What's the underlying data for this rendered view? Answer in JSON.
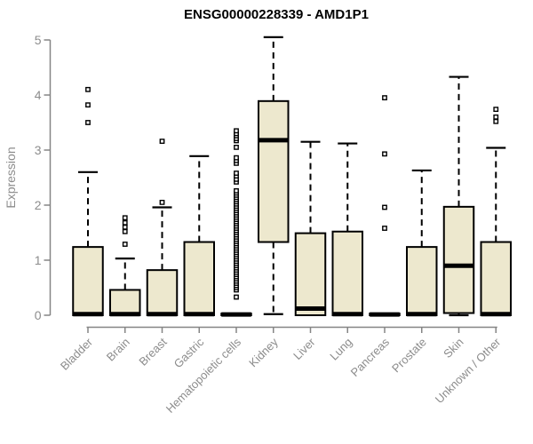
{
  "colors": {
    "box_fill": "#EDE8CE",
    "box_border": "#000000",
    "median": "#000000",
    "whisker": "#000000",
    "outlier_stroke": "#000000",
    "outlier_fill": "#FFFFFF",
    "axis_line": "#858585",
    "axis_text": "#8C8C8C",
    "title_text": "#000000"
  },
  "chart_data": {
    "type": "boxplot",
    "title": "ENSG00000228339 - AMD1P1",
    "ylabel": "Expression",
    "xlabel": "",
    "ylim": [
      0,
      5
    ],
    "yticks": [
      0,
      1,
      2,
      3,
      4,
      5
    ],
    "grid": false,
    "categories": [
      "Bladder",
      "Brain",
      "Breast",
      "Gastric",
      "Hematopoietic cells",
      "Kidney",
      "Liver",
      "Lung",
      "Pancreas",
      "Prostate",
      "Skin",
      "Unknown / Other"
    ],
    "series": [
      {
        "name": "Bladder",
        "q1": 0,
        "median": 0.02,
        "q3": 1.24,
        "whisker_low": 0,
        "whisker_high": 2.6,
        "outliers": [
          4.1,
          3.82,
          3.5
        ]
      },
      {
        "name": "Brain",
        "q1": 0,
        "median": 0.02,
        "q3": 0.46,
        "whisker_low": 0,
        "whisker_high": 1.03,
        "outliers": [
          1.77,
          1.68,
          1.6,
          1.52,
          1.29
        ]
      },
      {
        "name": "Breast",
        "q1": 0,
        "median": 0.02,
        "q3": 0.82,
        "whisker_low": 0,
        "whisker_high": 1.96,
        "outliers": [
          2.05,
          3.16
        ]
      },
      {
        "name": "Gastric",
        "q1": 0,
        "median": 0.02,
        "q3": 1.33,
        "whisker_low": 0,
        "whisker_high": 2.89,
        "outliers": []
      },
      {
        "name": "Hematopoietic cells",
        "q1": 0,
        "median": 0.015,
        "q3": 0.03,
        "whisker_low": 0,
        "whisker_high": 0.03,
        "outliers": [
          0.33,
          0.46,
          0.5,
          0.54,
          0.58,
          0.62,
          0.66,
          0.7,
          0.74,
          0.78,
          0.82,
          0.86,
          0.9,
          0.94,
          0.98,
          1.02,
          1.06,
          1.1,
          1.14,
          1.18,
          1.22,
          1.26,
          1.3,
          1.34,
          1.38,
          1.42,
          1.46,
          1.5,
          1.54,
          1.58,
          1.62,
          1.66,
          1.7,
          1.74,
          1.78,
          1.82,
          1.86,
          1.9,
          1.94,
          1.98,
          2.02,
          2.06,
          2.1,
          2.14,
          2.18,
          2.22,
          2.26,
          2.42,
          2.47,
          2.53,
          2.58,
          2.76,
          2.81,
          2.86,
          3.05,
          3.17,
          3.21,
          3.26,
          3.3,
          3.35
        ]
      },
      {
        "name": "Kidney",
        "q1": 1.33,
        "median": 3.18,
        "q3": 3.89,
        "whisker_low": 0.02,
        "whisker_high": 5.05,
        "outliers": []
      },
      {
        "name": "Liver",
        "q1": 0,
        "median": 0.12,
        "q3": 1.49,
        "whisker_low": 0,
        "whisker_high": 3.15,
        "outliers": []
      },
      {
        "name": "Lung",
        "q1": 0,
        "median": 0.02,
        "q3": 1.52,
        "whisker_low": 0,
        "whisker_high": 3.12,
        "outliers": []
      },
      {
        "name": "Pancreas",
        "q1": 0,
        "median": 0.015,
        "q3": 0.03,
        "whisker_low": 0,
        "whisker_high": 0.03,
        "outliers": [
          3.95,
          2.93,
          1.96,
          1.58
        ]
      },
      {
        "name": "Prostate",
        "q1": 0,
        "median": 0.02,
        "q3": 1.24,
        "whisker_low": 0,
        "whisker_high": 2.63,
        "outliers": []
      },
      {
        "name": "Skin",
        "q1": 0.04,
        "median": 0.9,
        "q3": 1.97,
        "whisker_low": 0,
        "whisker_high": 4.33,
        "outliers": []
      },
      {
        "name": "Unknown / Other",
        "q1": 0,
        "median": 0.02,
        "q3": 1.33,
        "whisker_low": 0,
        "whisker_high": 3.04,
        "outliers": [
          3.74,
          3.6,
          3.52
        ]
      }
    ]
  }
}
